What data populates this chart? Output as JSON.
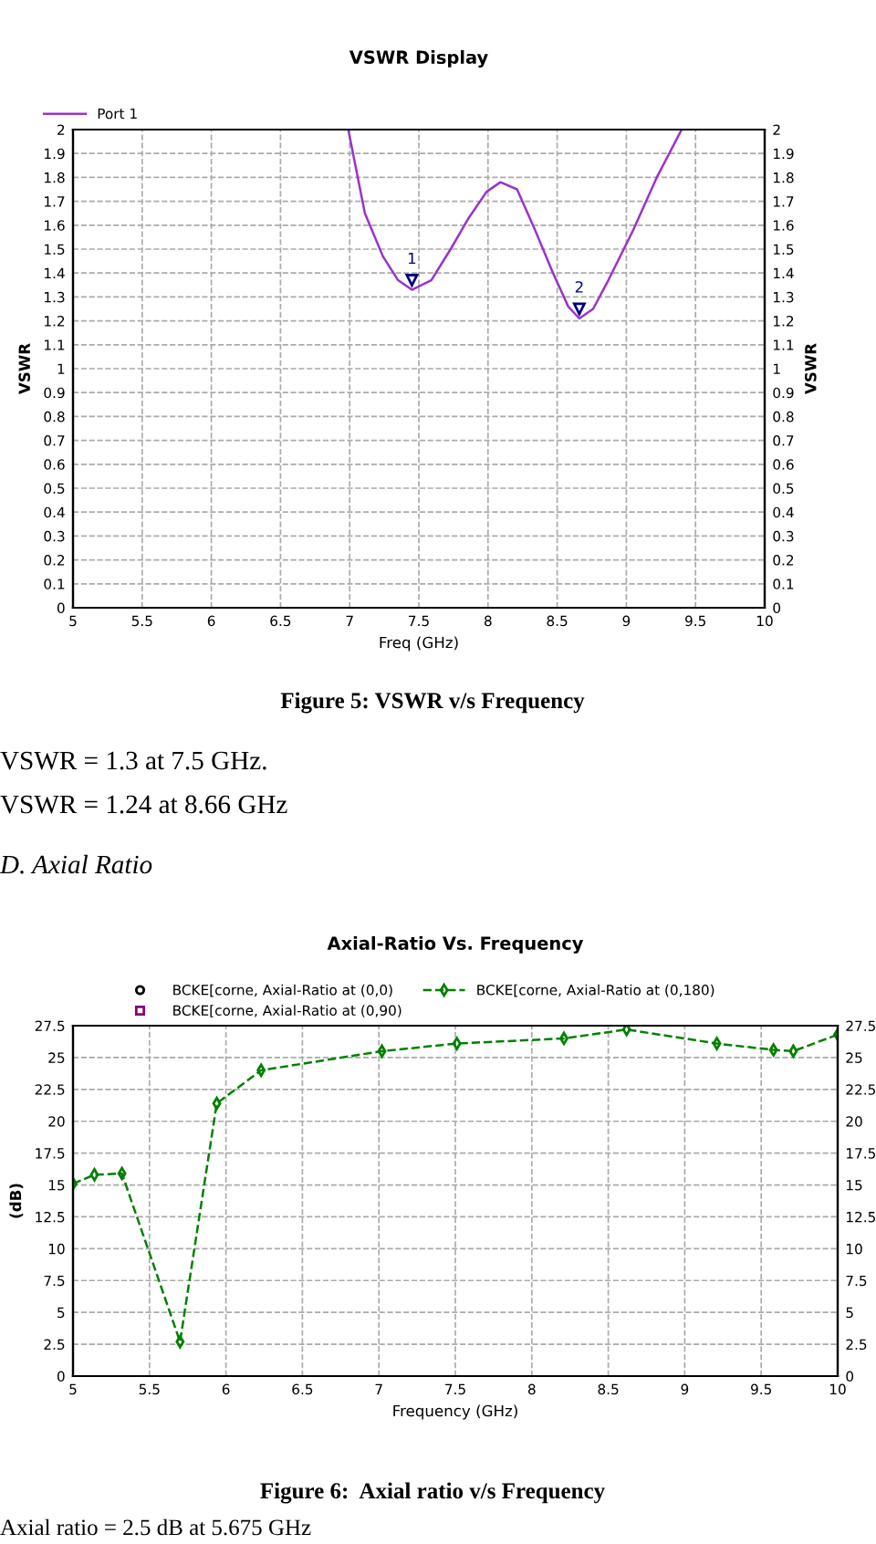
{
  "chart_data": [
    {
      "type": "line",
      "title": "VSWR Display",
      "xlabel": "Freq (GHz)",
      "ylabel": "VSWR",
      "y2label": "VSWR",
      "x": [
        6.99,
        7.11,
        7.24,
        7.35,
        7.45,
        7.59,
        7.73,
        7.86,
        7.99,
        8.09,
        8.21,
        8.34,
        8.47,
        8.58,
        8.66,
        8.76,
        8.87,
        9.05,
        9.22,
        9.4
      ],
      "series": [
        {
          "name": "Port 1",
          "color": "#9933cc",
          "values": [
            2.0,
            1.65,
            1.47,
            1.37,
            1.33,
            1.37,
            1.5,
            1.63,
            1.74,
            1.78,
            1.75,
            1.58,
            1.4,
            1.26,
            1.21,
            1.25,
            1.37,
            1.58,
            1.8,
            2.0
          ]
        }
      ],
      "xlim": [
        5,
        10
      ],
      "xticks": [
        5,
        5.5,
        6,
        6.5,
        7,
        7.5,
        8,
        8.5,
        9,
        9.5,
        10
      ],
      "ylim": [
        0,
        2
      ],
      "yticks": [
        0,
        0.1,
        0.2,
        0.3,
        0.4,
        0.5,
        0.6,
        0.7,
        0.8,
        0.9,
        1,
        1.1,
        1.2,
        1.3,
        1.4,
        1.5,
        1.6,
        1.7,
        1.8,
        1.9,
        2
      ],
      "y2lim": [
        0,
        2
      ],
      "y2ticks": [
        0,
        0.1,
        0.2,
        0.3,
        0.4,
        0.5,
        0.6,
        0.7,
        0.8,
        0.9,
        1,
        1.1,
        1.2,
        1.3,
        1.4,
        1.5,
        1.6,
        1.7,
        1.8,
        1.9,
        2
      ],
      "grid": true,
      "legend": "top left",
      "marker": "none",
      "line_style": "solid",
      "annotations": [
        {
          "text": "1",
          "x": 7.45,
          "y": 1.33
        },
        {
          "text": "2",
          "x": 8.66,
          "y": 1.21
        },
        "Figure 5: VSWR v/s Frequency",
        "VSWR = 1.3 at 7.5 GHz.",
        "VSWR = 1.24 at 8.66 GHz"
      ]
    },
    {
      "type": "line",
      "title": "Axial-Ratio Vs. Frequency",
      "xlabel": "Frequency (GHz)",
      "ylabel": "(dB)",
      "x": [
        5.0,
        5.14,
        5.32,
        5.7,
        5.94,
        6.23,
        7.02,
        7.51,
        8.21,
        8.62,
        9.21,
        9.58,
        9.71,
        10.0
      ],
      "series": [
        {
          "name": "BCKE[corne, Axial-Ratio at (0,0)",
          "type": "scatter",
          "marker": "circle",
          "color": "#000000",
          "values": [
            null,
            null,
            null,
            null,
            null,
            null,
            null,
            null,
            null,
            null,
            null,
            null,
            null,
            null
          ]
        },
        {
          "name": "BCKE[corne, Axial-Ratio at (0,90)",
          "type": "scatter",
          "marker": "square",
          "color": "#800080",
          "values": [
            null,
            null,
            null,
            null,
            null,
            null,
            null,
            null,
            null,
            null,
            null,
            null,
            null,
            null
          ]
        },
        {
          "name": "BCKE[corne, Axial-Ratio at (0,180)",
          "type": "line",
          "marker": "diamond",
          "line_style": "dashed",
          "color": "#008000",
          "values": [
            15.1,
            15.8,
            15.9,
            2.7,
            21.4,
            24.0,
            25.5,
            26.1,
            26.5,
            27.2,
            26.1,
            25.6,
            25.5,
            26.8
          ]
        }
      ],
      "xlim": [
        5,
        10
      ],
      "xticks": [
        5,
        5.5,
        6,
        6.5,
        7,
        7.5,
        8,
        8.5,
        9,
        9.5,
        10
      ],
      "ylim": [
        0,
        27.5
      ],
      "yticks": [
        0,
        2.5,
        5,
        7.5,
        10,
        12.5,
        15,
        17.5,
        20,
        22.5,
        25,
        27.5
      ],
      "y2lim": [
        0,
        27.5
      ],
      "y2ticks": [
        0,
        2.5,
        5,
        7.5,
        10,
        12.5,
        15,
        17.5,
        20,
        22.5,
        25,
        27.5
      ],
      "grid": true,
      "legend": "top",
      "annotations": [
        "D. Axial Ratio",
        "Figure 6:  Axial ratio v/s Frequency",
        "Axial ratio = 2.5 dB at 5.675 GHz"
      ]
    }
  ]
}
